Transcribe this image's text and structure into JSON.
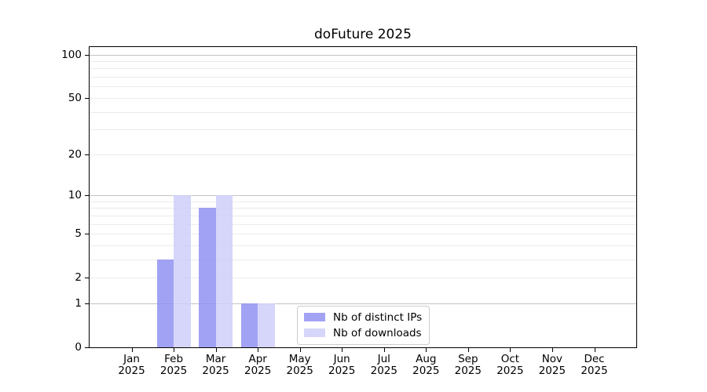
{
  "chart_data": {
    "type": "bar",
    "title": "doFuture 2025",
    "xlabel": "",
    "ylabel": "",
    "year": "2025",
    "months": [
      "Jan",
      "Feb",
      "Mar",
      "Apr",
      "May",
      "Jun",
      "Jul",
      "Aug",
      "Sep",
      "Oct",
      "Nov",
      "Dec"
    ],
    "series": [
      {
        "name": "Nb of distinct IPs",
        "color": "rgba(146,146,243,0.85)",
        "values": [
          0,
          3,
          8,
          1,
          0,
          0,
          0,
          0,
          0,
          0,
          0,
          0
        ]
      },
      {
        "name": "Nb of downloads",
        "color": "rgba(207,207,250,0.85)",
        "values": [
          0,
          10,
          10,
          1,
          0,
          0,
          0,
          0,
          0,
          0,
          0,
          0
        ]
      }
    ],
    "y_axis": {
      "scale": "log10(value+1)",
      "tick_values": [
        0,
        1,
        2,
        5,
        10,
        20,
        50,
        100
      ],
      "minor_gridlines": [
        2,
        3,
        4,
        5,
        6,
        7,
        8,
        9,
        20,
        30,
        40,
        50,
        60,
        70,
        80,
        90
      ],
      "major_gridlines": [
        1,
        10,
        100
      ],
      "ylim": [
        0,
        115
      ]
    },
    "legend_position": "lower center",
    "grid": "horizontal"
  },
  "colors": {
    "axis": "#000000",
    "minor_grid": "#ebebeb",
    "major_grid": "#c3c3c3",
    "background": "#ffffff",
    "bar_distinct_ips": "#a5a5f3",
    "bar_downloads": "#d9d9fa"
  }
}
